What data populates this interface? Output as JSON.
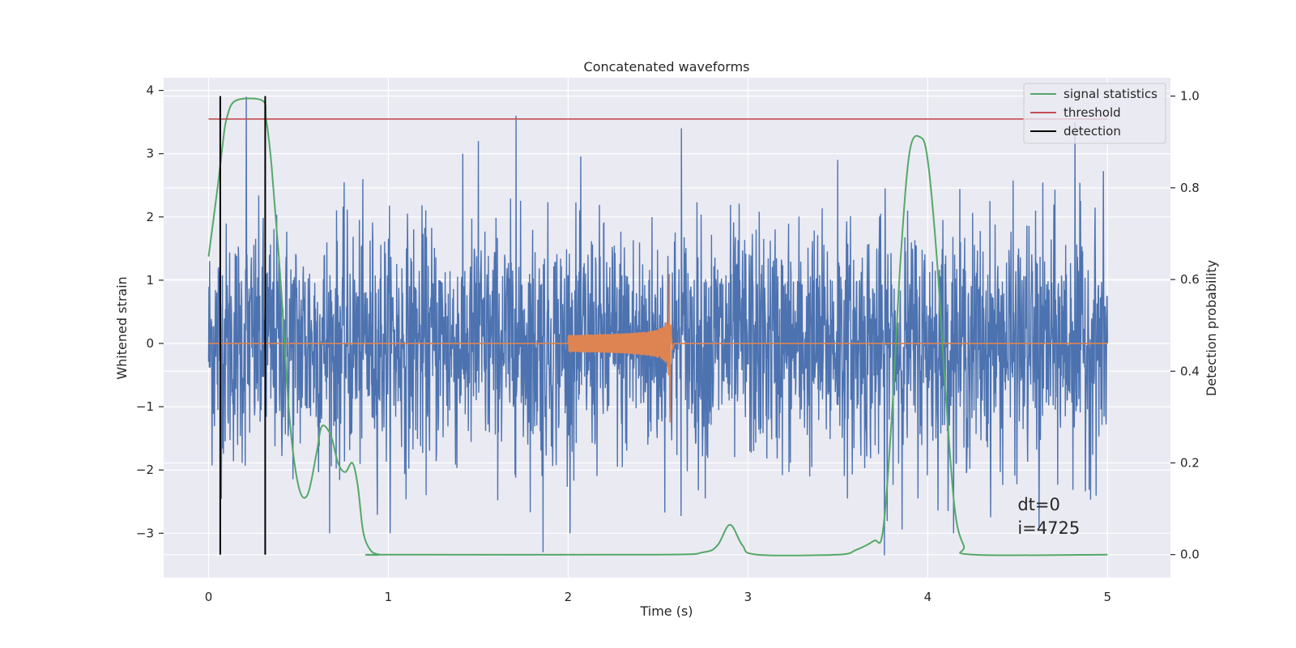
{
  "chart_data": {
    "type": "line",
    "title": "Concatenated waveforms",
    "xlabel": "Time (s)",
    "ylabel": "Whitened strain",
    "y2label": "Detection probability",
    "xlim": [
      -0.25,
      5.35
    ],
    "ylim": [
      -3.7,
      4.2
    ],
    "y2lim": [
      -0.05,
      1.04
    ],
    "xticks": [
      0,
      1,
      2,
      3,
      4,
      5
    ],
    "xtick_labels": [
      "0",
      "1",
      "2",
      "3",
      "4",
      "5"
    ],
    "yticks": [
      -3,
      -2,
      -1,
      0,
      1,
      2,
      3,
      4
    ],
    "ytick_labels": [
      "−3",
      "−2",
      "−1",
      "0",
      "1",
      "2",
      "3",
      "4"
    ],
    "y2ticks": [
      0.0,
      0.2,
      0.4,
      0.6,
      0.8,
      1.0
    ],
    "y2tick_labels": [
      "0.0",
      "0.2",
      "0.4",
      "0.6",
      "0.8",
      "1.0"
    ],
    "grid": true,
    "legend_position": "top-right",
    "legend": [
      {
        "label": "signal statistics",
        "color": "#55a868"
      },
      {
        "label": "threshold",
        "color": "#c44e52"
      },
      {
        "label": "detection",
        "color": "#000000"
      }
    ],
    "series": [
      {
        "role": "whitened-noise",
        "color": "#4c72b0",
        "x_range": [
          0,
          5
        ],
        "typical_amplitude": 1.3,
        "peaks": [
          {
            "x": 0.21,
            "y": 3.9
          },
          {
            "x": 1.71,
            "y": 3.6
          },
          {
            "x": 2.63,
            "y": 3.4
          },
          {
            "x": 1.86,
            "y": -3.3
          },
          {
            "x": 3.76,
            "y": -3.35
          },
          {
            "x": 4.82,
            "y": 3.5
          },
          {
            "x": 4.62,
            "y": -2.9
          },
          {
            "x": 1.5,
            "y": 3.2
          },
          {
            "x": 3.5,
            "y": 2.9
          }
        ]
      },
      {
        "role": "injected-chirp",
        "color": "#dd8452",
        "x_range": [
          0,
          5
        ],
        "chirp_start": 2.0,
        "chirp_merger": 2.56,
        "chirp_peak": 1.1,
        "chirp_trough": -1.25
      },
      {
        "name": "signal statistics",
        "color": "#55a868",
        "axis": "right",
        "x": [
          0.0,
          0.05,
          0.08,
          0.1,
          0.15,
          0.3,
          0.32,
          0.35,
          0.4,
          0.45,
          0.5,
          0.55,
          0.6,
          0.63,
          0.68,
          0.72,
          0.76,
          0.8,
          0.83,
          0.86,
          0.9,
          0.95,
          1.0,
          2.5,
          2.75,
          2.83,
          2.9,
          2.97,
          3.05,
          3.5,
          3.6,
          3.7,
          3.75,
          3.8,
          3.85,
          3.9,
          3.96,
          4.0,
          4.05,
          4.1,
          4.15,
          4.2,
          4.25,
          5.0
        ],
        "y": [
          0.65,
          0.8,
          0.9,
          0.95,
          0.99,
          0.99,
          0.95,
          0.85,
          0.6,
          0.3,
          0.15,
          0.13,
          0.22,
          0.28,
          0.26,
          0.2,
          0.18,
          0.2,
          0.15,
          0.05,
          0.01,
          0.0,
          0.0,
          0.0,
          0.005,
          0.02,
          0.065,
          0.02,
          0.0,
          0.0,
          0.01,
          0.03,
          0.05,
          0.3,
          0.65,
          0.88,
          0.91,
          0.86,
          0.65,
          0.35,
          0.1,
          0.02,
          0.0,
          0.0
        ]
      },
      {
        "name": "threshold",
        "color": "#c44e52",
        "axis": "right",
        "x": [
          0,
          5
        ],
        "y": [
          0.95,
          0.95
        ]
      },
      {
        "name": "detection",
        "color": "#000000",
        "axis": "right",
        "type": "vlines",
        "x": [
          0.065,
          0.315
        ],
        "ymin": 0.0,
        "ymax": 1.0
      }
    ],
    "annotation": {
      "x": 4.5,
      "lines": [
        "dt=0",
        "i=4725"
      ]
    }
  }
}
